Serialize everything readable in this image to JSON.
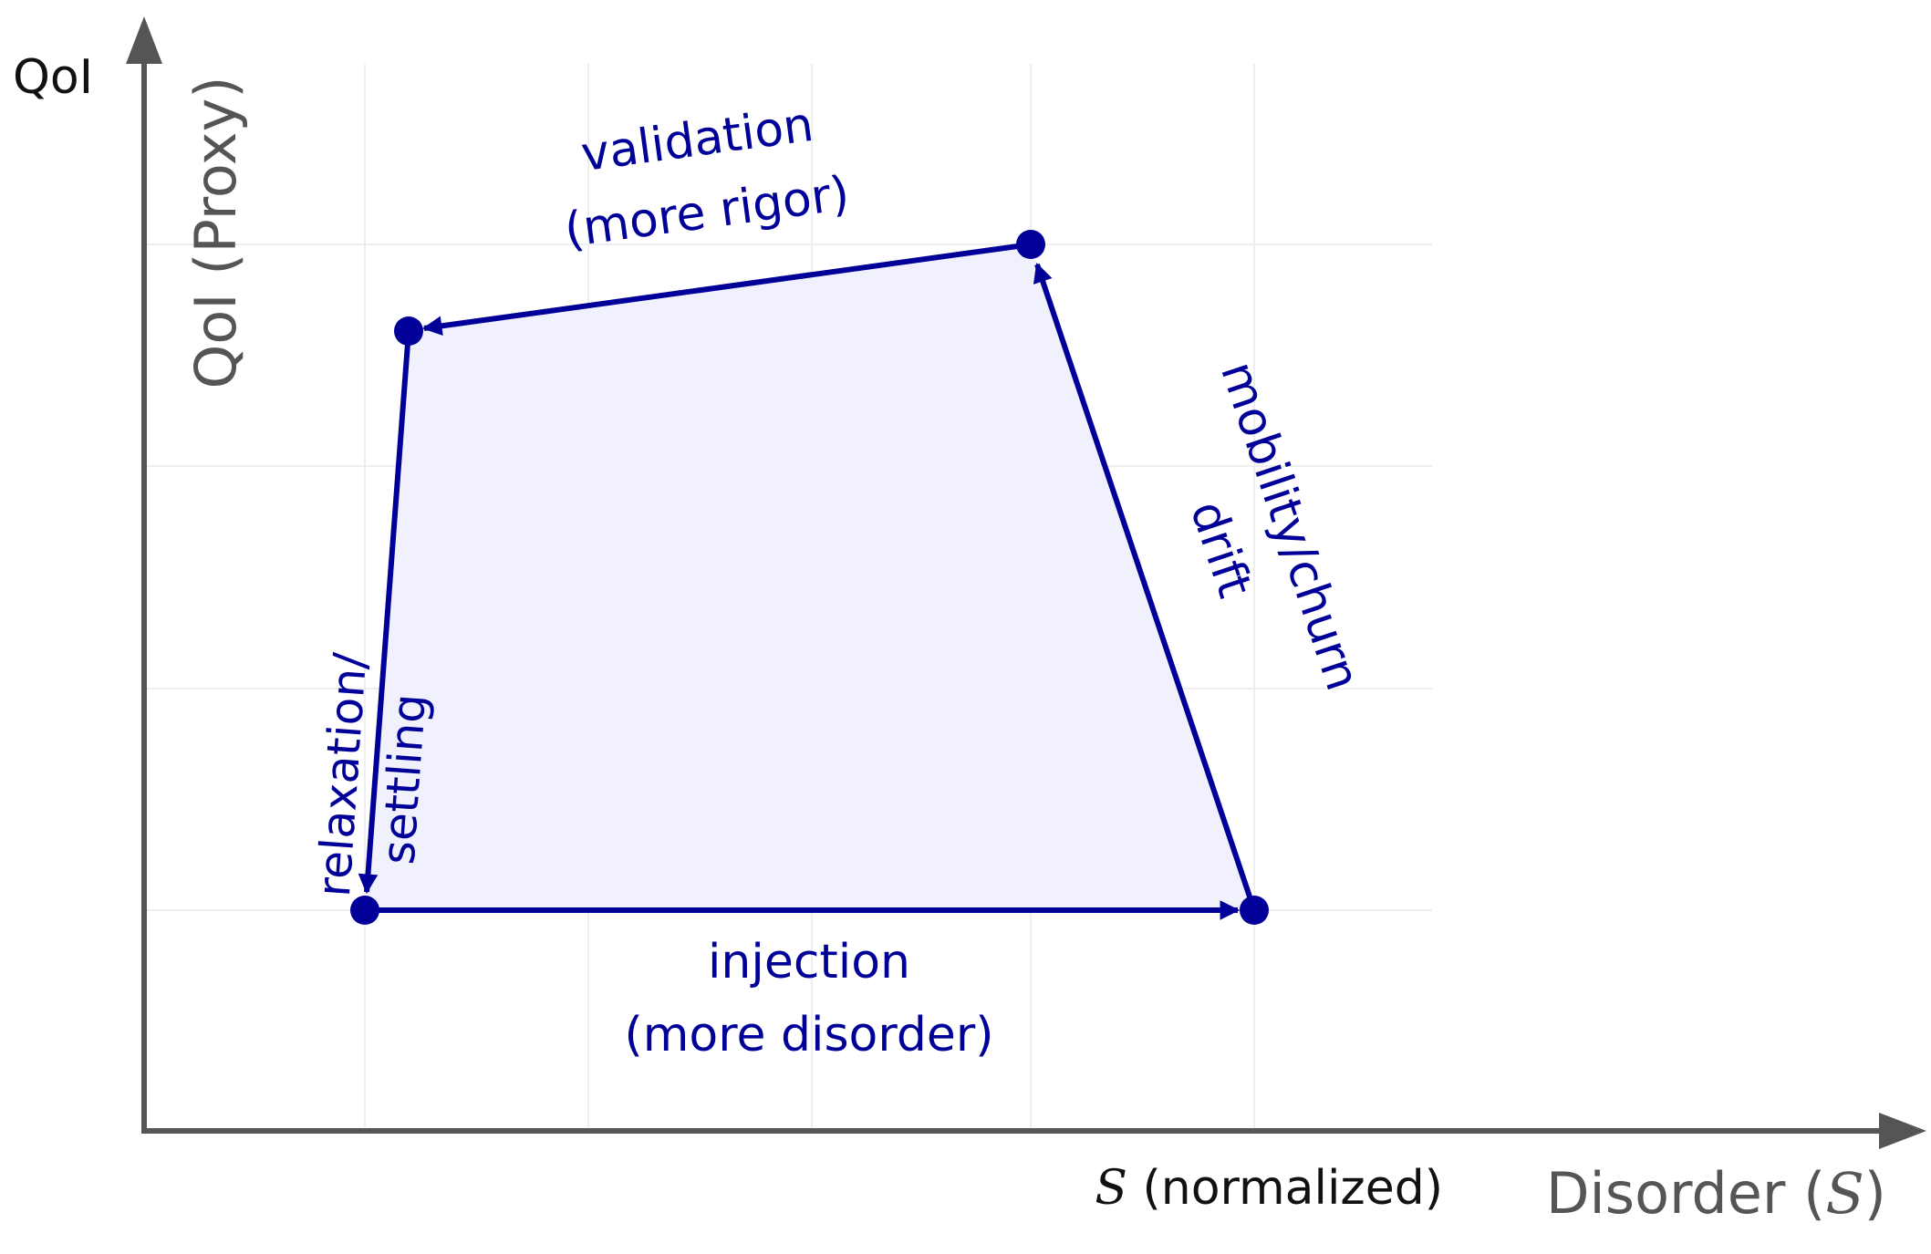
{
  "diagram": {
    "y_axis_symbol": "QoI",
    "y_axis_title": "QoI (Proxy)",
    "x_axis_symbol_var": "S",
    "x_axis_symbol_rest": " (normalized)",
    "x_axis_title_prefix": "Disorder (",
    "x_axis_title_var": "S",
    "x_axis_title_suffix": ")",
    "edges": {
      "validation": [
        "validation",
        "(more rigor)"
      ],
      "mobility": [
        "mobility/churn",
        "drift"
      ],
      "relaxation": [
        "relaxation/",
        "settling"
      ],
      "injection": [
        "injection",
        "(more disorder)"
      ]
    },
    "colors": {
      "cycle": "#000099",
      "fill": "#f1f1fd",
      "axis": "#555555",
      "grid": "#eeeeee",
      "label_dark": "#111111",
      "label_grey": "#555555"
    }
  }
}
